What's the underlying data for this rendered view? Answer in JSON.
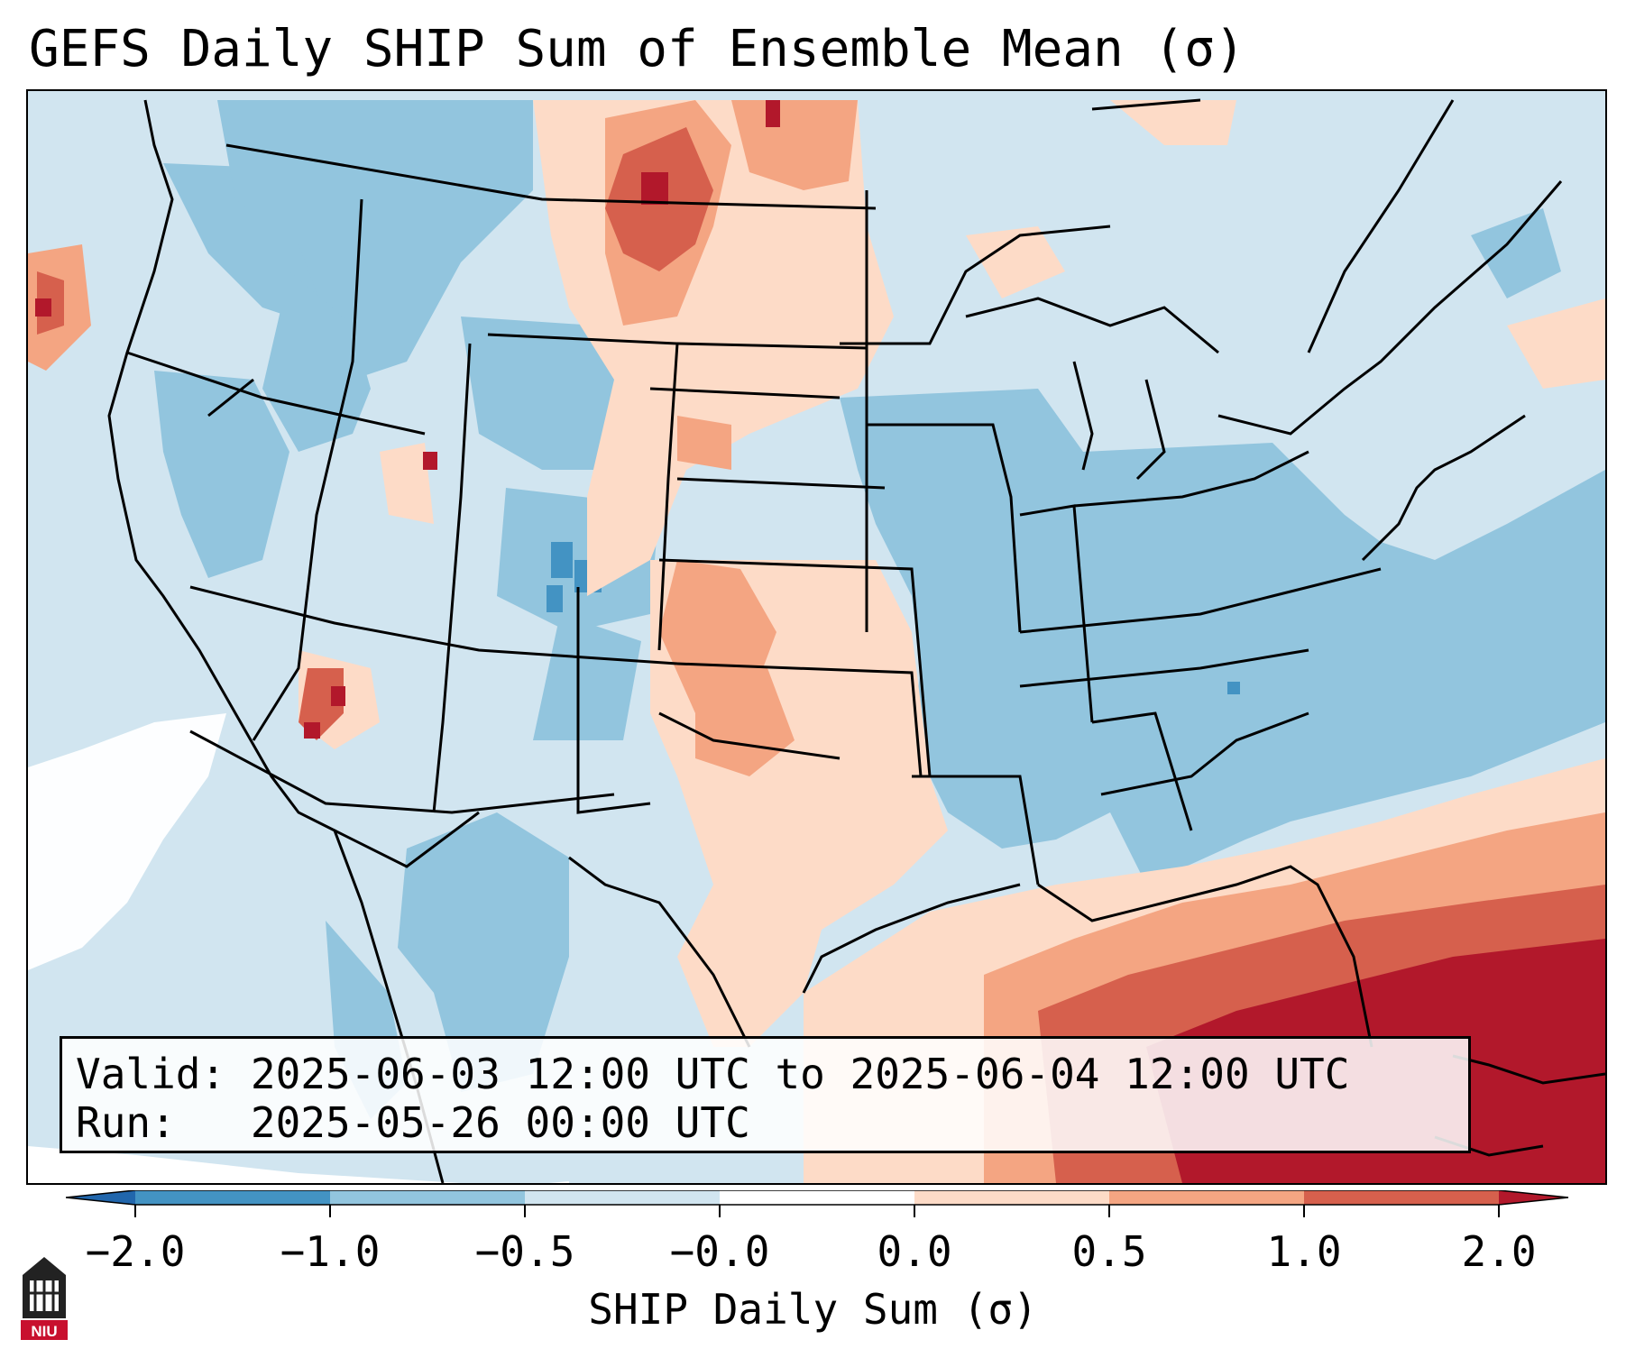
{
  "title": "GEFS Daily SHIP Sum of Ensemble Mean (σ)",
  "info": {
    "valid_label": "Valid:",
    "valid_value": "2025-06-03 12:00 UTC to 2025-06-04 12:00 UTC",
    "run_label": "Run:",
    "run_value": "2025-05-26 00:00 UTC"
  },
  "colorbar": {
    "label": "SHIP Daily Sum (σ)",
    "tick_labels": [
      "−2.0",
      "−1.0",
      "−0.5",
      "−0.0",
      "0.0",
      "0.5",
      "1.0",
      "2.0"
    ],
    "bins": [
      {
        "range": "< -2.0",
        "color": "#2166ac"
      },
      {
        "range": "-2.0 to -1.0",
        "color": "#4393c3"
      },
      {
        "range": "-1.0 to -0.5",
        "color": "#92c5de"
      },
      {
        "range": "-0.5 to -0.0",
        "color": "#d1e5f0"
      },
      {
        "range": "-0.0 to 0.0",
        "color": "#ffffff"
      },
      {
        "range": "0.0 to 0.5",
        "color": "#fddbc7"
      },
      {
        "range": "0.5 to 1.0",
        "color": "#f4a582"
      },
      {
        "range": "1.0 to 2.0",
        "color": "#d6604d"
      },
      {
        "range": "> 2.0",
        "color": "#b2182b"
      }
    ]
  },
  "logo": {
    "text": "NIU",
    "color": "#c8102e"
  }
}
